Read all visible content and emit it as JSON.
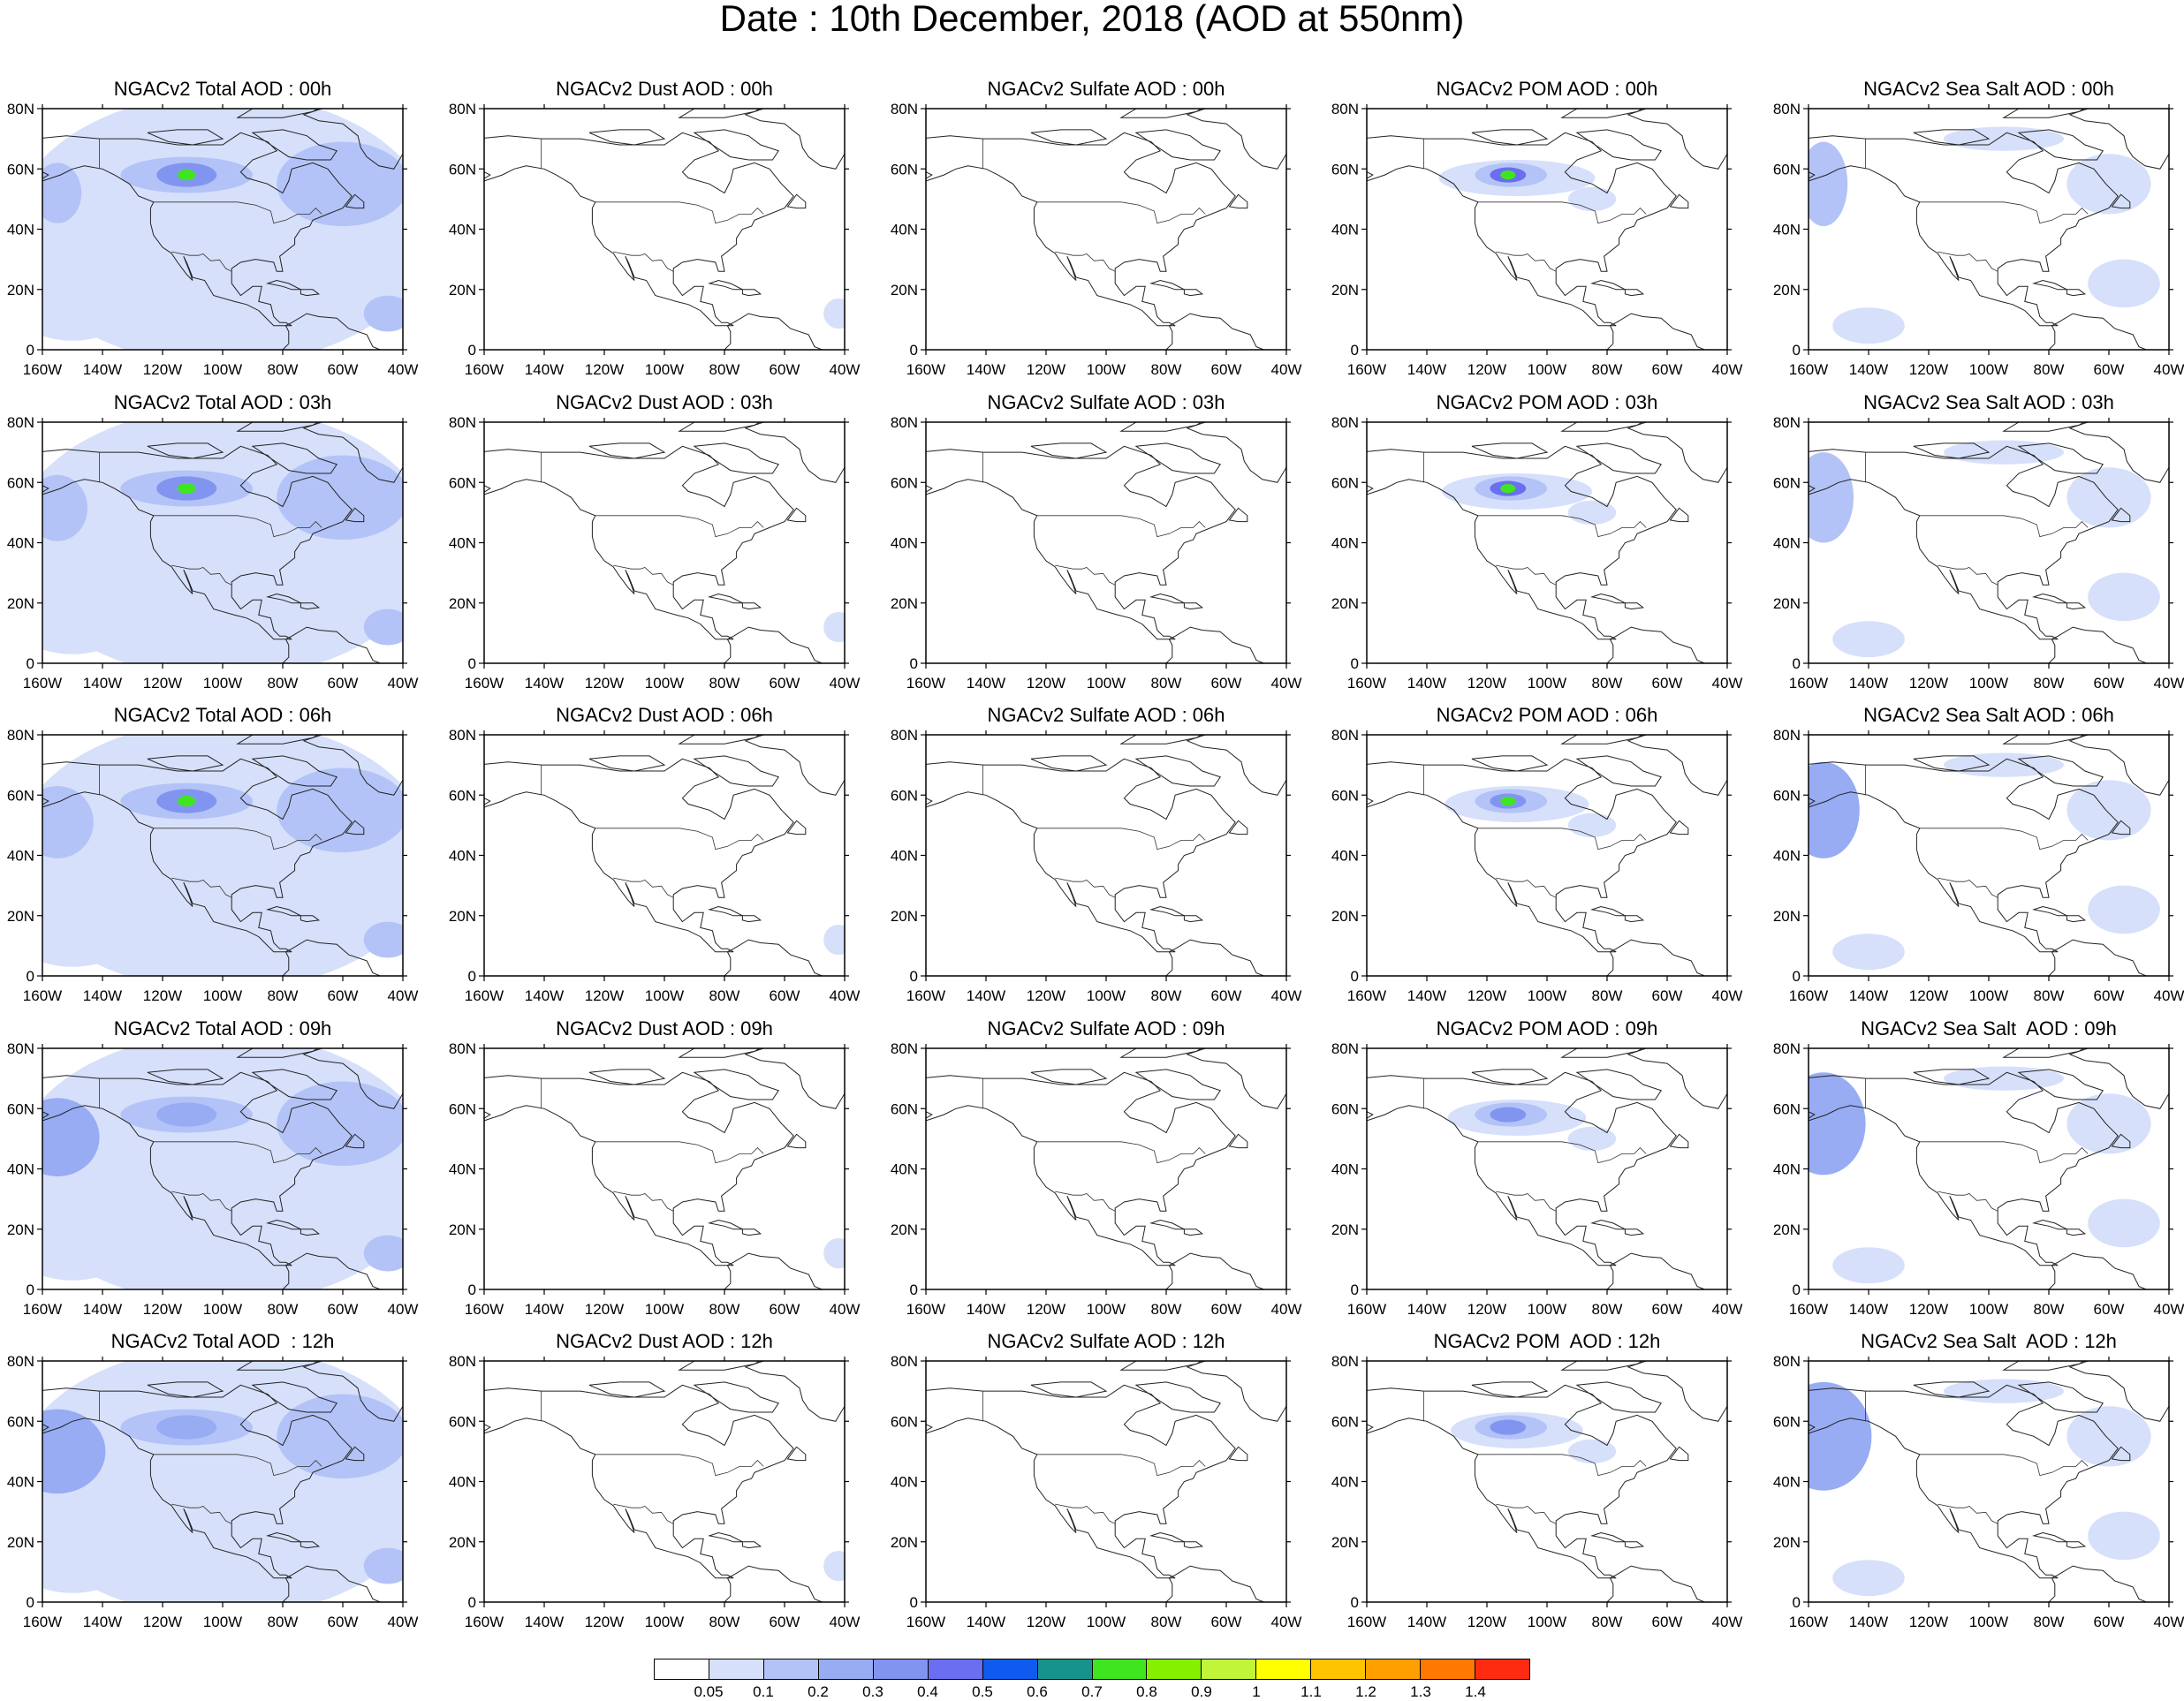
{
  "title": "Date : 10th December, 2018 (AOD at 550nm)",
  "species": [
    {
      "key": "total",
      "label": "NGACv2 Total AOD"
    },
    {
      "key": "dust",
      "label": "NGACv2 Dust AOD"
    },
    {
      "key": "sulfate",
      "label": "NGACv2 Sulfate AOD"
    },
    {
      "key": "pom",
      "label": "NGACv2 POM AOD"
    },
    {
      "key": "seasalt",
      "label": "NGACv2 Sea Salt AOD"
    }
  ],
  "hours": [
    "00h",
    "03h",
    "06h",
    "09h",
    "12h"
  ],
  "panel_titles": [
    [
      "NGACv2 Total AOD : 00h",
      "NGACv2 Dust AOD : 00h",
      "NGACv2 Sulfate AOD : 00h",
      "NGACv2 POM AOD : 00h",
      "NGACv2 Sea Salt AOD : 00h"
    ],
    [
      "NGACv2 Total AOD : 03h",
      "NGACv2 Dust AOD : 03h",
      "NGACv2 Sulfate AOD : 03h",
      "NGACv2 POM AOD : 03h",
      "NGACv2 Sea Salt AOD : 03h"
    ],
    [
      "NGACv2 Total AOD : 06h",
      "NGACv2 Dust AOD : 06h",
      "NGACv2 Sulfate AOD : 06h",
      "NGACv2 POM AOD : 06h",
      "NGACv2 Sea Salt AOD : 06h"
    ],
    [
      "NGACv2 Total AOD : 09h",
      "NGACv2 Dust AOD : 09h",
      "NGACv2 Sulfate AOD : 09h",
      "NGACv2 POM AOD : 09h",
      "NGACv2 Sea Salt  AOD : 09h"
    ],
    [
      "NGACv2 Total AOD  : 12h",
      "NGACv2 Dust AOD : 12h",
      "NGACv2 Sulfate AOD : 12h",
      "NGACv2 POM  AOD : 12h",
      "NGACv2 Sea Salt  AOD : 12h"
    ]
  ],
  "map_extent": {
    "lon_min": -160,
    "lon_max": -40,
    "lat_min": 0,
    "lat_max": 80
  },
  "x_tick_labels": [
    "160W",
    "140W",
    "120W",
    "100W",
    "80W",
    "60W",
    "40W"
  ],
  "y_tick_labels": [
    "0",
    "20N",
    "40N",
    "60N",
    "80N"
  ],
  "colorbar": {
    "levels": [
      "0.05",
      "0.1",
      "0.2",
      "0.3",
      "0.4",
      "0.5",
      "0.6",
      "0.7",
      "0.8",
      "0.9",
      "1",
      "1.1",
      "1.2",
      "1.3",
      "1.4"
    ],
    "colors": [
      "#ffffff",
      "#d6e0fb",
      "#b3c3f7",
      "#98acf4",
      "#8195f0",
      "#6a6ef0",
      "#0f5bf0",
      "#16948c",
      "#3fe61f",
      "#85f000",
      "#c0f53a",
      "#ffff00",
      "#ffc400",
      "#ffa000",
      "#ff7800",
      "#ff2b10"
    ]
  }
}
